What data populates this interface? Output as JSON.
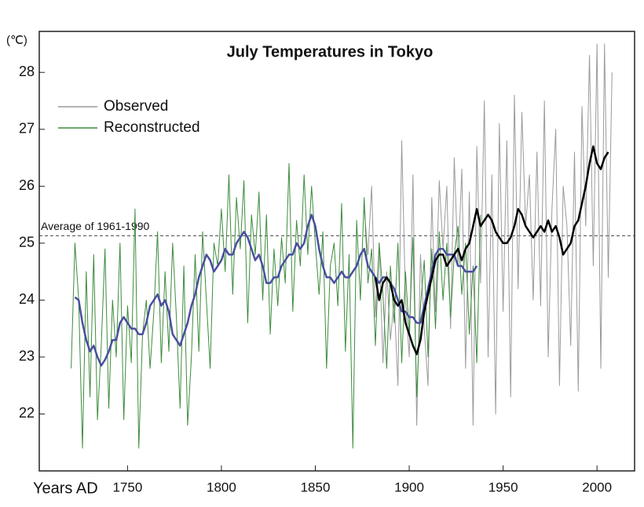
{
  "chart_data": {
    "type": "line",
    "title": "July Temperatures in Tokyo",
    "y_label": "(℃)",
    "x_label": "Years AD",
    "xlim": [
      1703,
      2020
    ],
    "xticks": [
      1750,
      1800,
      1850,
      1900,
      1950,
      2000
    ],
    "ylim": [
      21,
      28.72
    ],
    "yticks": [
      22,
      23,
      24,
      25,
      26,
      27,
      28
    ],
    "legend": "top-left",
    "average": {
      "label": "Average of 1961-1990",
      "value": 25.13
    },
    "x": [
      1720,
      1722,
      1724,
      1726,
      1728,
      1730,
      1732,
      1734,
      1736,
      1738,
      1740,
      1742,
      1744,
      1746,
      1748,
      1750,
      1752,
      1754,
      1756,
      1758,
      1760,
      1762,
      1764,
      1766,
      1768,
      1770,
      1772,
      1774,
      1776,
      1778,
      1780,
      1782,
      1784,
      1786,
      1788,
      1790,
      1792,
      1794,
      1796,
      1798,
      1800,
      1802,
      1804,
      1806,
      1808,
      1810,
      1812,
      1814,
      1816,
      1818,
      1820,
      1822,
      1824,
      1826,
      1828,
      1830,
      1832,
      1834,
      1836,
      1838,
      1840,
      1842,
      1844,
      1846,
      1848,
      1850,
      1852,
      1854,
      1856,
      1858,
      1860,
      1862,
      1864,
      1866,
      1868,
      1870,
      1872,
      1874,
      1876,
      1878,
      1880,
      1882,
      1884,
      1886,
      1888,
      1890,
      1892,
      1894,
      1896,
      1898,
      1900,
      1902,
      1904,
      1906,
      1908,
      1910,
      1912,
      1914,
      1916,
      1918,
      1920,
      1922,
      1924,
      1926,
      1928,
      1930,
      1932,
      1934,
      1936,
      1938,
      1940,
      1942,
      1944,
      1946,
      1948,
      1950,
      1952,
      1954,
      1956,
      1958,
      1960,
      1962,
      1964,
      1966,
      1968,
      1970,
      1972,
      1974,
      1976,
      1978,
      1980,
      1982,
      1984,
      1986,
      1988,
      1990,
      1992,
      1994,
      1996,
      1998,
      2000,
      2002,
      2004,
      2006,
      2008
    ],
    "series": [
      {
        "name": "Observed",
        "color": "#9a9a9a",
        "width": 1,
        "values": [
          null,
          null,
          null,
          null,
          null,
          null,
          null,
          null,
          null,
          null,
          null,
          null,
          null,
          null,
          null,
          null,
          null,
          null,
          null,
          null,
          null,
          null,
          null,
          null,
          null,
          null,
          null,
          null,
          null,
          null,
          null,
          null,
          null,
          null,
          null,
          null,
          null,
          null,
          null,
          null,
          null,
          null,
          null,
          null,
          null,
          null,
          null,
          null,
          null,
          null,
          null,
          null,
          null,
          null,
          null,
          null,
          null,
          null,
          null,
          null,
          null,
          null,
          null,
          null,
          null,
          null,
          null,
          null,
          null,
          null,
          null,
          null,
          null,
          null,
          null,
          null,
          null,
          null,
          25.6,
          24.8,
          26.0,
          23.7,
          25.0,
          22.9,
          24.5,
          23.3,
          24.0,
          22.5,
          26.8,
          24.0,
          23.0,
          26.2,
          21.8,
          24.8,
          23.5,
          22.5,
          25.8,
          23.8,
          26.1,
          24.9,
          26.0,
          23.5,
          26.5,
          24.6,
          26.3,
          22.8,
          25.9,
          21.8,
          26.7,
          24.3,
          27.5,
          23.0,
          26.2,
          22.0,
          27.1,
          23.8,
          26.8,
          22.3,
          27.6,
          24.2,
          27.3,
          25.3,
          26.2,
          24.0,
          26.6,
          23.9,
          27.5,
          23.0,
          25.6,
          27.0,
          22.5,
          26.0,
          25.3,
          23.2,
          26.6,
          22.4,
          27.4,
          25.3,
          28.3,
          24.6,
          28.5,
          22.8,
          28.5,
          24.4,
          28.0
        ]
      },
      {
        "name": "Reconstructed",
        "color": "#3c8c3c",
        "width": 1,
        "values": [
          22.8,
          25.0,
          24.0,
          21.4,
          24.5,
          22.3,
          24.8,
          21.9,
          23.2,
          24.9,
          22.1,
          24.0,
          23.0,
          25.0,
          21.9,
          23.9,
          22.9,
          25.6,
          21.4,
          23.4,
          24.0,
          22.8,
          23.8,
          25.2,
          22.9,
          24.5,
          23.1,
          25.0,
          23.7,
          22.1,
          24.6,
          21.8,
          23.0,
          24.8,
          23.1,
          25.2,
          24.0,
          22.8,
          25.0,
          24.6,
          25.6,
          24.5,
          26.2,
          24.1,
          25.8,
          24.9,
          26.1,
          23.6,
          25.5,
          24.8,
          25.9,
          24.0,
          25.5,
          23.4,
          24.9,
          23.9,
          25.1,
          24.3,
          26.4,
          23.8,
          25.4,
          24.6,
          26.2,
          24.8,
          26.0,
          25.0,
          24.1,
          25.2,
          22.8,
          24.6,
          25.0,
          23.9,
          25.7,
          23.1,
          24.8,
          21.4,
          25.4,
          24.0,
          25.8,
          24.3,
          24.9,
          23.2,
          25.0,
          24.1,
          22.8,
          24.6,
          23.6,
          25.0,
          22.9,
          24.5,
          23.4,
          25.1,
          22.3,
          23.9,
          24.7,
          23.0,
          24.9,
          23.5,
          25.2,
          24.0,
          25.0,
          23.7,
          24.8,
          25.3,
          24.1,
          25.0,
          23.4,
          24.6,
          22.9,
          25.5,
          null,
          null,
          null,
          null,
          null,
          null,
          null,
          null,
          null,
          null,
          null,
          null,
          null,
          null,
          null,
          null,
          null,
          null,
          null,
          null,
          null,
          null,
          null,
          null,
          null,
          null,
          null,
          null,
          null,
          null,
          null,
          null,
          null,
          null,
          null
        ]
      },
      {
        "color": "#4a4f9e",
        "width": 2.5,
        "values": [
          null,
          24.05,
          24.0,
          23.6,
          23.3,
          23.1,
          23.2,
          23.0,
          22.85,
          22.95,
          23.1,
          23.3,
          23.3,
          23.6,
          23.7,
          23.6,
          23.5,
          23.5,
          23.4,
          23.4,
          23.6,
          23.9,
          24.0,
          24.1,
          23.9,
          24.0,
          23.8,
          23.4,
          23.3,
          23.2,
          23.4,
          23.6,
          23.9,
          24.1,
          24.4,
          24.6,
          24.8,
          24.7,
          24.5,
          24.6,
          24.7,
          24.9,
          24.8,
          24.8,
          25.0,
          25.1,
          25.2,
          25.1,
          24.9,
          24.7,
          24.8,
          24.6,
          24.3,
          24.3,
          24.4,
          24.4,
          24.6,
          24.7,
          24.8,
          24.8,
          25.0,
          24.9,
          25.0,
          25.3,
          25.5,
          25.3,
          24.9,
          24.6,
          24.4,
          24.4,
          24.3,
          24.4,
          24.5,
          24.4,
          24.4,
          24.5,
          24.6,
          24.8,
          24.9,
          24.6,
          24.5,
          24.4,
          24.3,
          24.4,
          24.4,
          24.3,
          24.2,
          24.0,
          23.8,
          23.8,
          23.7,
          23.7,
          23.6,
          23.6,
          23.9,
          24.2,
          24.5,
          24.8,
          24.9,
          24.9,
          24.8,
          24.8,
          24.8,
          24.6,
          24.6,
          24.5,
          24.5,
          24.5,
          24.6,
          null,
          null,
          null,
          null,
          null,
          null,
          null,
          null,
          null,
          null,
          null,
          null,
          null,
          null,
          null,
          null,
          null,
          null,
          null,
          null,
          null,
          null,
          null,
          null,
          null,
          null,
          null,
          null,
          null,
          null,
          null,
          null,
          null,
          null,
          null,
          null
        ]
      },
      {
        "color": "#000000",
        "width": 2.5,
        "values": [
          null,
          null,
          null,
          null,
          null,
          null,
          null,
          null,
          null,
          null,
          null,
          null,
          null,
          null,
          null,
          null,
          null,
          null,
          null,
          null,
          null,
          null,
          null,
          null,
          null,
          null,
          null,
          null,
          null,
          null,
          null,
          null,
          null,
          null,
          null,
          null,
          null,
          null,
          null,
          null,
          null,
          null,
          null,
          null,
          null,
          null,
          null,
          null,
          null,
          null,
          null,
          null,
          null,
          null,
          null,
          null,
          null,
          null,
          null,
          null,
          null,
          null,
          null,
          null,
          null,
          null,
          null,
          null,
          null,
          null,
          null,
          null,
          null,
          null,
          null,
          null,
          null,
          null,
          null,
          null,
          null,
          24.4,
          24.0,
          24.3,
          24.4,
          24.3,
          24.0,
          23.9,
          24.0,
          23.6,
          23.4,
          23.2,
          23.05,
          23.3,
          23.8,
          24.1,
          24.4,
          24.7,
          24.8,
          24.8,
          24.6,
          24.7,
          24.8,
          24.9,
          24.7,
          24.9,
          25.0,
          25.3,
          25.6,
          25.3,
          25.4,
          25.5,
          25.4,
          25.2,
          25.1,
          25.0,
          25.0,
          25.1,
          25.3,
          25.6,
          25.5,
          25.3,
          25.2,
          25.1,
          25.2,
          25.3,
          25.2,
          25.4,
          25.2,
          25.3,
          25.1,
          24.8,
          24.9,
          25.0,
          25.3,
          25.4,
          25.7,
          26.0,
          26.4,
          26.7,
          26.4,
          26.3,
          26.5,
          26.6,
          null
        ]
      }
    ]
  }
}
